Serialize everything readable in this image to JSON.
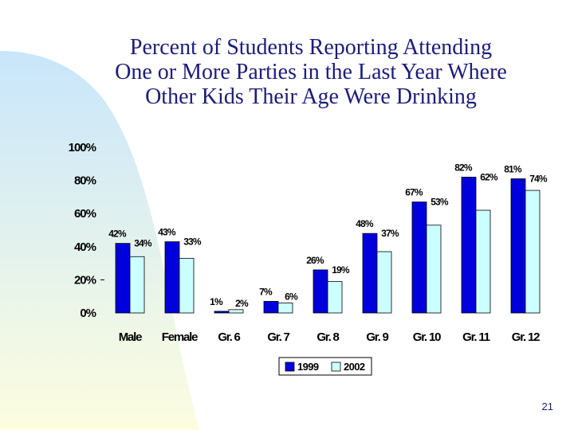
{
  "colors": {
    "series_1999": "#0000dd",
    "series_2002": "#ccffff",
    "title": "#1c1c7a",
    "background_gradient_top": "#c8e6fb",
    "background_gradient_bottom": "#fdfde0"
  },
  "chart_data": {
    "type": "bar",
    "title_lines": [
      "Percent of Students Reporting Attending",
      "One or More Parties in the Last Year Where",
      "Other Kids Their Age Were Drinking"
    ],
    "categories": [
      "Male",
      "Female",
      "Gr. 6",
      "Gr. 7",
      "Gr. 8",
      "Gr. 9",
      "Gr. 10",
      "Gr. 11",
      "Gr. 12"
    ],
    "series": [
      {
        "name": "1999",
        "values": [
          42,
          43,
          1,
          7,
          26,
          48,
          67,
          82,
          81
        ],
        "labels": [
          "42%",
          "43%",
          "1%",
          "7%",
          "26%",
          "48%",
          "67%",
          "82%",
          "81%"
        ]
      },
      {
        "name": "2002",
        "values": [
          34,
          33,
          2,
          6,
          19,
          37,
          53,
          62,
          74
        ],
        "labels": [
          "34%",
          "33%",
          "2%",
          "6%",
          "19%",
          "37%",
          "53%",
          "62%",
          "74%"
        ]
      }
    ],
    "yticks": [
      "0%",
      "20%",
      "40%",
      "60%",
      "80%",
      "100%"
    ],
    "ylim": [
      0,
      100
    ],
    "xlabel": "",
    "ylabel": "",
    "legend": [
      "1999",
      "2002"
    ],
    "legend_position": "bottom-center"
  },
  "slide_number": "21"
}
